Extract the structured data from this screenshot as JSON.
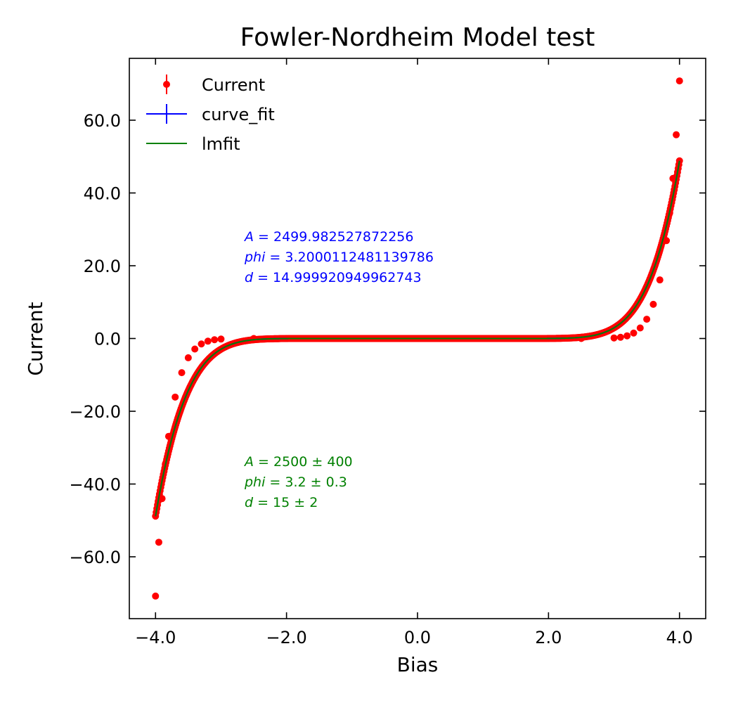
{
  "chart_data": {
    "type": "scatter",
    "title": "Fowler-Nordheim Model test",
    "xlabel": "Bias",
    "ylabel": "Current",
    "xlim": [
      -4.4,
      4.4
    ],
    "ylim": [
      -77,
      77
    ],
    "xticks": [
      -4.0,
      -2.0,
      0.0,
      2.0,
      4.0
    ],
    "yticks": [
      -60.0,
      -40.0,
      -20.0,
      0.0,
      20.0,
      40.0,
      60.0
    ],
    "xtick_labels": [
      "−4.0",
      "−2.0",
      "0.0",
      "2.0",
      "4.0"
    ],
    "ytick_labels": [
      "−60.0",
      "−40.0",
      "−20.0",
      "0.0",
      "20.0",
      "40.0",
      "60.0"
    ],
    "grid": false,
    "legend_position": "top-left",
    "model": {
      "name": "Fowler-Nordheim",
      "A": 2499.982527872256,
      "phi": 3.2000112481139786,
      "d": 14.999920949962743
    },
    "series": [
      {
        "name": "Current",
        "kind": "errorbar-points",
        "color": "#ff0000",
        "x": [
          -4.0,
          -3.95,
          -3.9,
          -3.85,
          -3.8,
          -3.7,
          -3.6,
          -3.5,
          -3.4,
          -3.3,
          -3.2,
          -3.1,
          -3.0,
          -2.5,
          -2.0,
          -1.0,
          0.0,
          1.0,
          2.0,
          2.5,
          3.0,
          3.1,
          3.2,
          3.3,
          3.4,
          3.5,
          3.6,
          3.7,
          3.8,
          3.85,
          3.9,
          3.95,
          4.0
        ],
        "y": [
          -70.8,
          -56.0,
          -44.0,
          -34.5,
          -26.9,
          -16.1,
          -9.4,
          -5.3,
          -2.9,
          -1.5,
          -0.73,
          -0.34,
          -0.15,
          -0.01,
          0.0,
          0.0,
          0.0,
          0.0,
          0.0,
          0.01,
          0.15,
          0.34,
          0.73,
          1.5,
          2.9,
          5.3,
          9.4,
          16.1,
          26.9,
          34.5,
          44.0,
          56.0,
          70.8
        ]
      },
      {
        "name": "curve_fit",
        "kind": "line",
        "color": "#0000ff"
      },
      {
        "name": "lmfit",
        "kind": "line",
        "color": "#008000"
      }
    ],
    "annotations": {
      "curve_fit": {
        "color": "#0000ff",
        "lines": [
          {
            "var": "A",
            "text": " = 2499.982527872256"
          },
          {
            "var": "phi",
            "text": " = 3.2000112481139786"
          },
          {
            "var": "d",
            "text": " = 14.999920949962743"
          }
        ]
      },
      "lmfit": {
        "color": "#008000",
        "lines": [
          {
            "var": "A",
            "text": " = 2500 ± 400"
          },
          {
            "var": "phi",
            "text": " = 3.2 ± 0.3"
          },
          {
            "var": "d",
            "text": " = 15 ± 2"
          }
        ]
      }
    }
  }
}
